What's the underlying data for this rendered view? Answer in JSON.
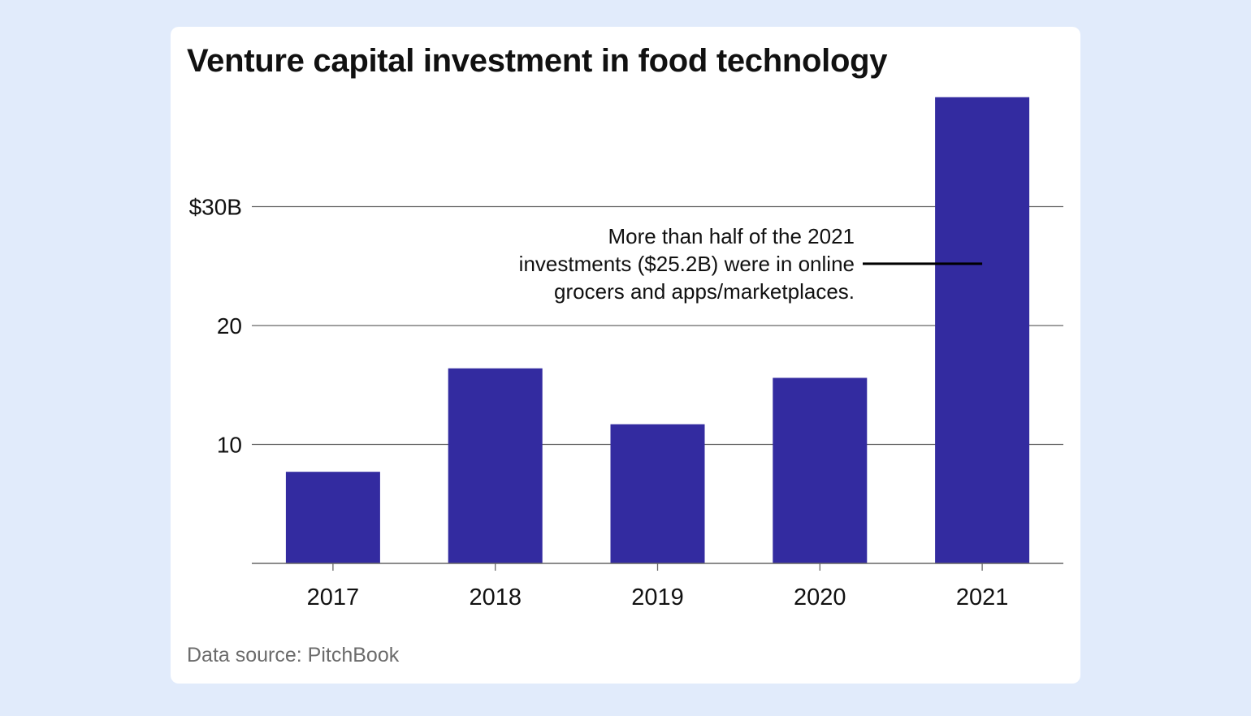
{
  "title": "Venture capital investment in food technology",
  "source": "Data source: PitchBook",
  "colors": {
    "background": "#e1ebfb",
    "card": "#ffffff",
    "bar": "#332ba0",
    "grid": "#666666",
    "text": "#111111",
    "source_text": "#6b6b6b"
  },
  "chart_data": {
    "type": "bar",
    "title": "Venture capital investment in food technology",
    "xlabel": "",
    "ylabel": "",
    "categories": [
      "2017",
      "2018",
      "2019",
      "2020",
      "2021"
    ],
    "values": [
      7.7,
      16.4,
      11.7,
      15.6,
      39.2
    ],
    "ylim": [
      0,
      40
    ],
    "y_ticks": [
      {
        "value": 10,
        "label": "10"
      },
      {
        "value": 20,
        "label": "20"
      },
      {
        "value": 30,
        "label": "$30B"
      }
    ],
    "grid": true,
    "annotation": {
      "category": "2021",
      "value": 25.2,
      "lines": [
        "More than half of the 2021",
        "investments ($25.2B) were in online",
        "grocers and apps/marketplaces."
      ]
    }
  }
}
